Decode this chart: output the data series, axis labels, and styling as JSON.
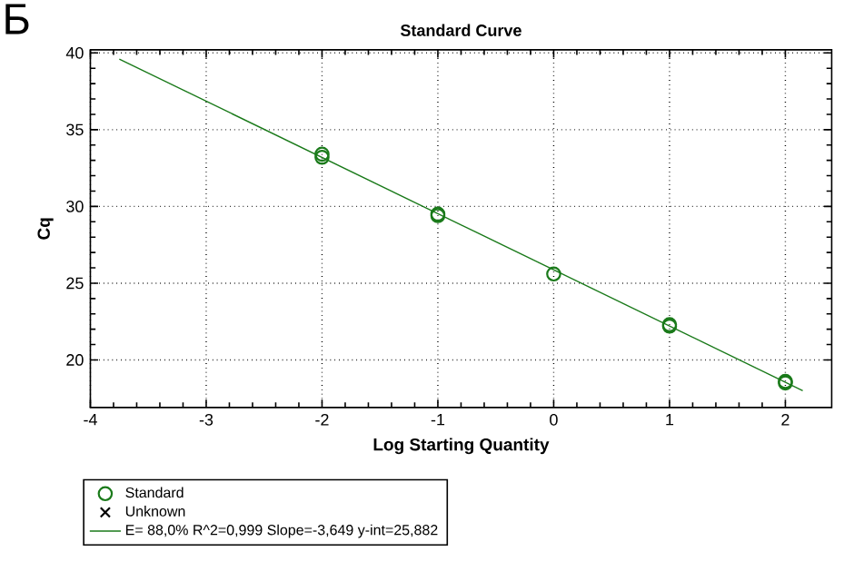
{
  "chart_data": {
    "type": "scatter",
    "title": "Standard Curve",
    "xlabel": "Log Starting Quantity",
    "ylabel": "Cq",
    "annotations": [
      "Б"
    ],
    "xlim": [
      -4,
      2.4
    ],
    "ylim": [
      16.9,
      40.2
    ],
    "xticks": [
      -4,
      -3,
      -2,
      -1,
      0,
      1,
      2
    ],
    "yticks": [
      20,
      25,
      30,
      35,
      40
    ],
    "grid": true,
    "legend": "bottom",
    "series": [
      {
        "name": "Standard",
        "marker": "circle",
        "color": "#1a7a1a",
        "x": [
          -2,
          -2,
          -1,
          -1,
          0,
          1,
          1,
          2,
          2
        ],
        "values": [
          33.2,
          33.4,
          29.5,
          29.4,
          25.6,
          22.2,
          22.3,
          18.6,
          18.5
        ]
      },
      {
        "name": "Unknown",
        "type": "scatter",
        "marker": "cross",
        "color": "#000000"
      },
      {
        "name": "E= 88,0% R^2=0,999 Slope=-3,649 y-int=25,882",
        "type": "line",
        "color": "#1a7a1a",
        "x": [
          -3.75,
          2.15
        ],
        "values": [
          39.6,
          18.0
        ]
      }
    ]
  }
}
